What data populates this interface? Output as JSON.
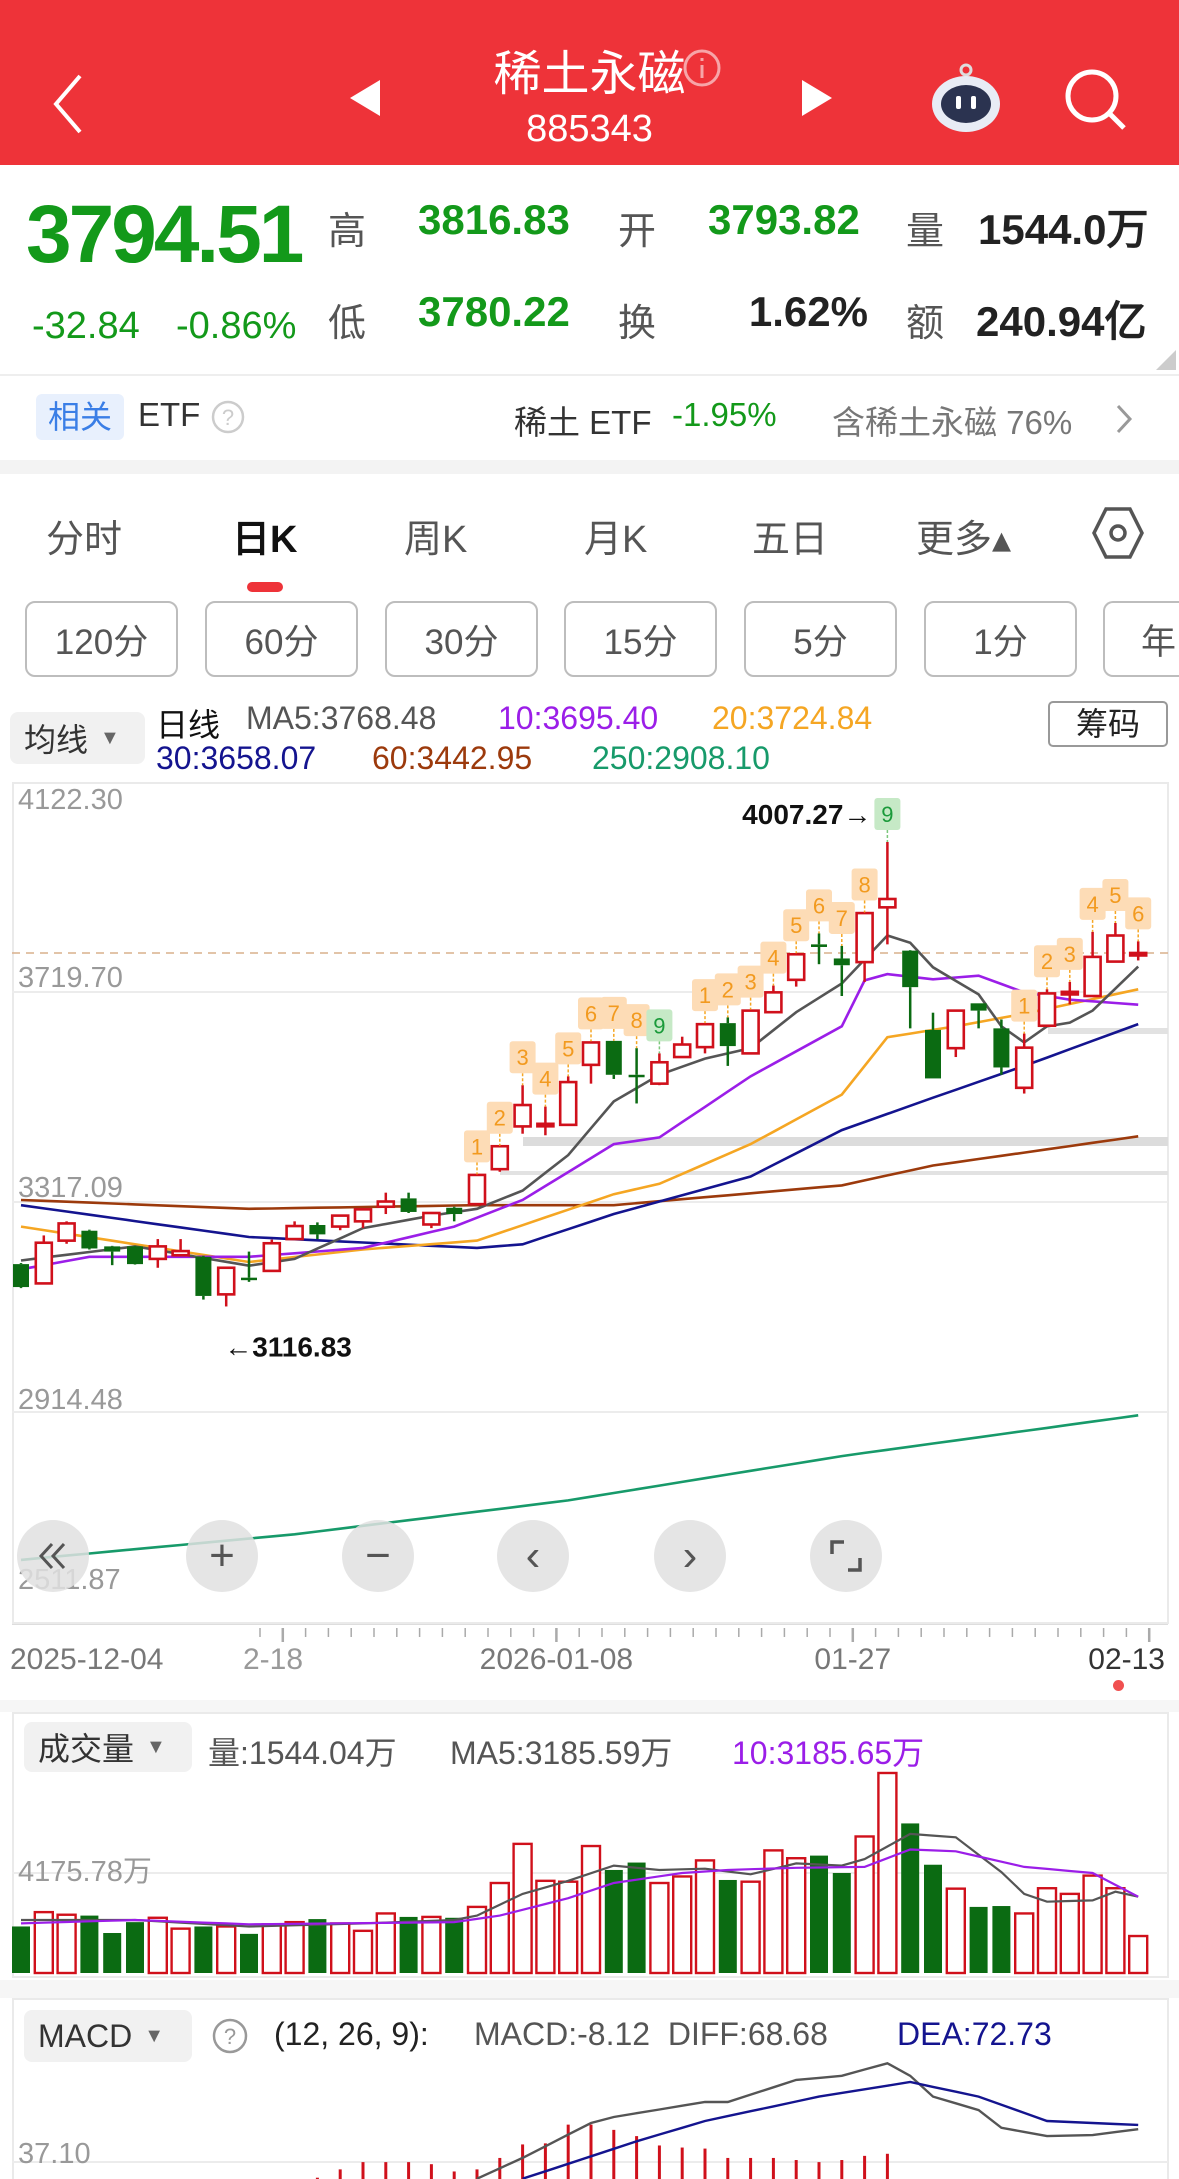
{
  "header": {
    "title": "稀土永磁",
    "code": "885343"
  },
  "quote": {
    "price": "3794.51",
    "change": "-32.84",
    "change_pct": "-0.86%",
    "high_label": "高",
    "high": "3816.83",
    "open_label": "开",
    "open": "3793.82",
    "volume_label": "量",
    "volume": "1544.0万",
    "low_label": "低",
    "low": "3780.22",
    "turnover_label": "换",
    "turnover": "1.62%",
    "amount_label": "额",
    "amount": "240.94亿"
  },
  "etf": {
    "badge": "相关",
    "label": "ETF",
    "name": "稀土 ETF",
    "change": "-1.95%",
    "holding": "含稀土永磁 76%"
  },
  "tabs": {
    "items": [
      "分时",
      "日K",
      "周K",
      "月K",
      "五日",
      "更多▴"
    ],
    "active": "日K"
  },
  "periods": [
    "120分",
    "60分",
    "30分",
    "15分",
    "5分",
    "1分",
    "年"
  ],
  "ma_legend": {
    "dropdown": "均线",
    "period": "日线",
    "ma5": "MA5:3768.48",
    "ma10": "10:3695.40",
    "ma20": "20:3724.84",
    "ma30": "30:3658.07",
    "ma60": "60:3442.95",
    "ma250": "250:2908.10",
    "chips_button": "筹码"
  },
  "colors": {
    "brand_red": "#ee3339",
    "up": "#d0101b",
    "down": "#0b6b12",
    "price_green": "#13991a",
    "ma5": "#555555",
    "ma10": "#9b1ee8",
    "ma20": "#f5a623",
    "ma30": "#14148f",
    "ma60": "#9c3a0c",
    "ma250": "#179a6a",
    "dea": "#14148f"
  },
  "volume_panel": {
    "dropdown": "成交量",
    "vol": "量:1544.04万",
    "ma5": "MA5:3185.59万",
    "ma10": "10:3185.65万",
    "y_label": "4175.78万"
  },
  "macd_panel": {
    "dropdown": "MACD",
    "params": "(12, 26, 9):",
    "values": "MACD:-8.12  DIFF:68.68",
    "dea": "DEA:72.73",
    "y_label": "37.10"
  },
  "chart_data": [
    {
      "type": "candlestick",
      "y_ticks": [
        "4122.30",
        "3719.70",
        "3317.09",
        "2914.48",
        "2511.87"
      ],
      "ylim": [
        2511.87,
        4122.3
      ],
      "current_price": 3794.51,
      "x_labels": [
        {
          "i": 0,
          "label": "2025-12-04"
        },
        {
          "i": 11,
          "label": "2-18"
        },
        {
          "i": 23,
          "label": "2026-01-08"
        },
        {
          "i": 36,
          "label": "01-27"
        },
        {
          "i": 49,
          "label": "02-13"
        }
      ],
      "ohlc": [
        [
          3198,
          3200,
          3152,
          3154
        ],
        [
          3161,
          3253,
          3160,
          3239
        ],
        [
          3243,
          3280,
          3237,
          3276
        ],
        [
          3262,
          3264,
          3226,
          3228
        ],
        [
          3232,
          3233,
          3196,
          3222
        ],
        [
          3232,
          3233,
          3197,
          3198
        ],
        [
          3208,
          3246,
          3191,
          3232
        ],
        [
          3215,
          3246,
          3214,
          3223
        ],
        [
          3212,
          3214,
          3130,
          3137
        ],
        [
          3140,
          3193,
          3116.83,
          3191
        ],
        [
          3172,
          3222,
          3164,
          3170
        ],
        [
          3185,
          3245,
          3183,
          3238
        ],
        [
          3246,
          3280,
          3245,
          3271
        ],
        [
          3273,
          3278,
          3246,
          3255
        ],
        [
          3270,
          3292,
          3263,
          3291
        ],
        [
          3280,
          3305,
          3267,
          3303
        ],
        [
          3308,
          3335,
          3294,
          3318
        ],
        [
          3324,
          3335,
          3296,
          3298
        ],
        [
          3274,
          3298,
          3267,
          3296
        ],
        [
          3306,
          3308,
          3280,
          3294
        ],
        [
          3313,
          3370,
          3312,
          3369
        ],
        [
          3380,
          3425,
          3375,
          3424
        ],
        [
          3462,
          3541,
          3448,
          3503
        ],
        [
          3464,
          3500,
          3445,
          3467
        ],
        [
          3465,
          3558,
          3465,
          3547
        ],
        [
          3580,
          3625,
          3544,
          3623
        ],
        [
          3626,
          3626,
          3553,
          3561
        ],
        [
          3561,
          3612,
          3506,
          3558
        ],
        [
          3544,
          3602,
          3541,
          3585
        ],
        [
          3595,
          3634,
          3595,
          3619
        ],
        [
          3614,
          3660,
          3602,
          3658
        ],
        [
          3660,
          3671,
          3578,
          3616
        ],
        [
          3602,
          3686,
          3602,
          3684
        ],
        [
          3681,
          3732,
          3680,
          3719
        ],
        [
          3743,
          3794,
          3730,
          3792
        ],
        [
          3811,
          3832,
          3773,
          3806
        ],
        [
          3784,
          3808,
          3712,
          3771
        ],
        [
          3777,
          3872,
          3739,
          3871
        ],
        [
          3882,
          4007.27,
          3811,
          3898
        ],
        [
          3799,
          3800,
          3650,
          3729
        ],
        [
          3647,
          3680,
          3554,
          3554
        ],
        [
          3612,
          3686,
          3595,
          3684
        ],
        [
          3698,
          3698,
          3650,
          3684
        ],
        [
          3650,
          3667,
          3561,
          3575
        ],
        [
          3536,
          3640,
          3525,
          3613
        ],
        [
          3655,
          3725,
          3655,
          3717
        ],
        [
          3715,
          3739,
          3696,
          3720
        ],
        [
          3712,
          3835,
          3712,
          3787
        ],
        [
          3778,
          3852,
          3778,
          3828
        ],
        [
          3793.82,
          3816.83,
          3780.22,
          3794.51
        ]
      ],
      "ma_lines": {
        "ma5": [
          [
            0,
            3205
          ],
          [
            5,
            3232
          ],
          [
            10,
            3195
          ],
          [
            12,
            3208
          ],
          [
            15,
            3267
          ],
          [
            18,
            3291
          ],
          [
            20,
            3304
          ],
          [
            22,
            3339
          ],
          [
            24,
            3407
          ],
          [
            26,
            3510
          ],
          [
            28,
            3561
          ],
          [
            30,
            3592
          ],
          [
            32,
            3612
          ],
          [
            34,
            3681
          ],
          [
            36,
            3736
          ],
          [
            38,
            3828
          ],
          [
            39,
            3814
          ],
          [
            40,
            3767
          ],
          [
            42,
            3715
          ],
          [
            43,
            3654
          ],
          [
            44,
            3623
          ],
          [
            45,
            3654
          ],
          [
            46,
            3661
          ],
          [
            47,
            3684
          ],
          [
            49,
            3768.48
          ]
        ],
        "ma10": [
          [
            0,
            3188
          ],
          [
            3,
            3212
          ],
          [
            10,
            3212
          ],
          [
            15,
            3229
          ],
          [
            19,
            3270
          ],
          [
            22,
            3321
          ],
          [
            26,
            3428
          ],
          [
            28,
            3441
          ],
          [
            32,
            3558
          ],
          [
            36,
            3654
          ],
          [
            37,
            3742
          ],
          [
            38,
            3754
          ],
          [
            40,
            3744
          ],
          [
            42,
            3751
          ],
          [
            44,
            3719
          ],
          [
            46,
            3705
          ],
          [
            49,
            3695.4
          ]
        ],
        "ma20": [
          [
            0,
            3270
          ],
          [
            5,
            3236
          ],
          [
            10,
            3202
          ],
          [
            15,
            3226
          ],
          [
            20,
            3243
          ],
          [
            26,
            3332
          ],
          [
            28,
            3352
          ],
          [
            32,
            3428
          ],
          [
            36,
            3523
          ],
          [
            38,
            3633
          ],
          [
            41,
            3654
          ],
          [
            44,
            3678
          ],
          [
            49,
            3724.84
          ]
        ],
        "ma30": [
          [
            0,
            3311
          ],
          [
            10,
            3250
          ],
          [
            20,
            3229
          ],
          [
            22,
            3236
          ],
          [
            26,
            3294
          ],
          [
            28,
            3318
          ],
          [
            32,
            3366
          ],
          [
            36,
            3455
          ],
          [
            40,
            3517
          ],
          [
            44,
            3578
          ],
          [
            49,
            3658.07
          ]
        ],
        "ma60": [
          [
            0,
            3321
          ],
          [
            10,
            3304
          ],
          [
            20,
            3311
          ],
          [
            26,
            3311
          ],
          [
            36,
            3349
          ],
          [
            40,
            3387
          ],
          [
            49,
            3442.95
          ]
        ],
        "ma250": [
          [
            0,
            2631
          ],
          [
            12,
            2680
          ],
          [
            24,
            2745
          ],
          [
            36,
            2830
          ],
          [
            49,
            2908.1
          ]
        ]
      },
      "signals": [
        {
          "i": 20,
          "n": "1"
        },
        {
          "i": 21,
          "n": "2"
        },
        {
          "i": 22,
          "n": "3"
        },
        {
          "i": 23,
          "n": "4"
        },
        {
          "i": 24,
          "n": "5"
        },
        {
          "i": 25,
          "n": "6"
        },
        {
          "i": 26,
          "n": "7"
        },
        {
          "i": 27,
          "n": "8"
        },
        {
          "i": 28,
          "n": "9",
          "kind": "green"
        },
        {
          "i": 30,
          "n": "1"
        },
        {
          "i": 31,
          "n": "2"
        },
        {
          "i": 32,
          "n": "3"
        },
        {
          "i": 33,
          "n": "4"
        },
        {
          "i": 34,
          "n": "5"
        },
        {
          "i": 35,
          "n": "6"
        },
        {
          "i": 36,
          "n": "7"
        },
        {
          "i": 37,
          "n": "8"
        },
        {
          "i": 38,
          "n": "9",
          "kind": "green"
        },
        {
          "i": 44,
          "n": "1"
        },
        {
          "i": 45,
          "n": "2"
        },
        {
          "i": 46,
          "n": "3"
        },
        {
          "i": 47,
          "n": "4"
        },
        {
          "i": 48,
          "n": "5"
        },
        {
          "i": 49,
          "n": "6"
        }
      ],
      "annotations": {
        "high": {
          "i": 38,
          "label": "4007.27→"
        },
        "low": {
          "i": 9,
          "label": "←3116.83"
        }
      }
    },
    {
      "type": "bar",
      "unit": "万",
      "y_tick": 4175.78,
      "values": [
        1943,
        2542,
        2433,
        2397,
        1670,
        2124,
        2306,
        1852,
        1943,
        1943,
        1634,
        2033,
        2124,
        2251,
        2070,
        1761,
        2487,
        2342,
        2342,
        2306,
        2760,
        3758,
        5392,
        3849,
        3813,
        5302,
        4303,
        4612,
        3758,
        4031,
        4702,
        3885,
        3813,
        5120,
        4793,
        4902,
        4176,
        5701,
        8352,
        6246,
        4521,
        3522,
        2760,
        2796,
        2487,
        3540,
        3304,
        4067,
        3540,
        1544.04
      ],
      "ma5": [
        [
          0,
          2215
        ],
        [
          5,
          2215
        ],
        [
          10,
          1943
        ],
        [
          15,
          2070
        ],
        [
          19,
          2215
        ],
        [
          20,
          2397
        ],
        [
          22,
          3304
        ],
        [
          24,
          3849
        ],
        [
          26,
          4485
        ],
        [
          28,
          4303
        ],
        [
          30,
          4357
        ],
        [
          32,
          4121
        ],
        [
          34,
          4575
        ],
        [
          36,
          4485
        ],
        [
          37,
          4757
        ],
        [
          39,
          5810
        ],
        [
          41,
          5665
        ],
        [
          43,
          4212
        ],
        [
          44,
          3304
        ],
        [
          45,
          2978
        ],
        [
          47,
          3032
        ],
        [
          48,
          3395
        ],
        [
          49,
          3185.59
        ]
      ],
      "ma10": [
        [
          0,
          2070
        ],
        [
          5,
          2215
        ],
        [
          10,
          2033
        ],
        [
          19,
          2124
        ],
        [
          21,
          2397
        ],
        [
          24,
          3123
        ],
        [
          26,
          3758
        ],
        [
          29,
          4176
        ],
        [
          31,
          4303
        ],
        [
          34,
          4394
        ],
        [
          37,
          4430
        ],
        [
          39,
          5156
        ],
        [
          41,
          5084
        ],
        [
          44,
          4430
        ],
        [
          47,
          4176
        ],
        [
          49,
          3185.65
        ]
      ]
    },
    {
      "type": "macd",
      "y_tick": 37.1,
      "diff": [
        [
          20,
          21
        ],
        [
          22,
          41
        ],
        [
          25,
          74.6
        ],
        [
          26,
          80.4
        ],
        [
          30,
          94.8
        ],
        [
          31,
          94.8
        ],
        [
          34,
          116
        ],
        [
          36,
          120
        ],
        [
          38,
          132
        ],
        [
          39,
          120
        ],
        [
          40,
          100
        ],
        [
          42,
          87
        ],
        [
          43,
          70
        ],
        [
          45,
          62
        ],
        [
          47,
          63
        ],
        [
          49,
          68.68
        ]
      ],
      "dea": [
        [
          22,
          21
        ],
        [
          27,
          57
        ],
        [
          30,
          76.5
        ],
        [
          35,
          100
        ],
        [
          39,
          114
        ],
        [
          42,
          100
        ],
        [
          45,
          76.5
        ],
        [
          49,
          72.73
        ]
      ],
      "histogram_start": 13,
      "histogram": [
        22,
        30,
        37,
        37,
        37,
        35,
        28,
        30,
        41,
        54,
        55,
        73,
        73,
        68,
        62,
        53,
        51,
        50,
        41,
        41,
        41,
        39,
        37,
        39,
        43,
        45
      ]
    }
  ]
}
